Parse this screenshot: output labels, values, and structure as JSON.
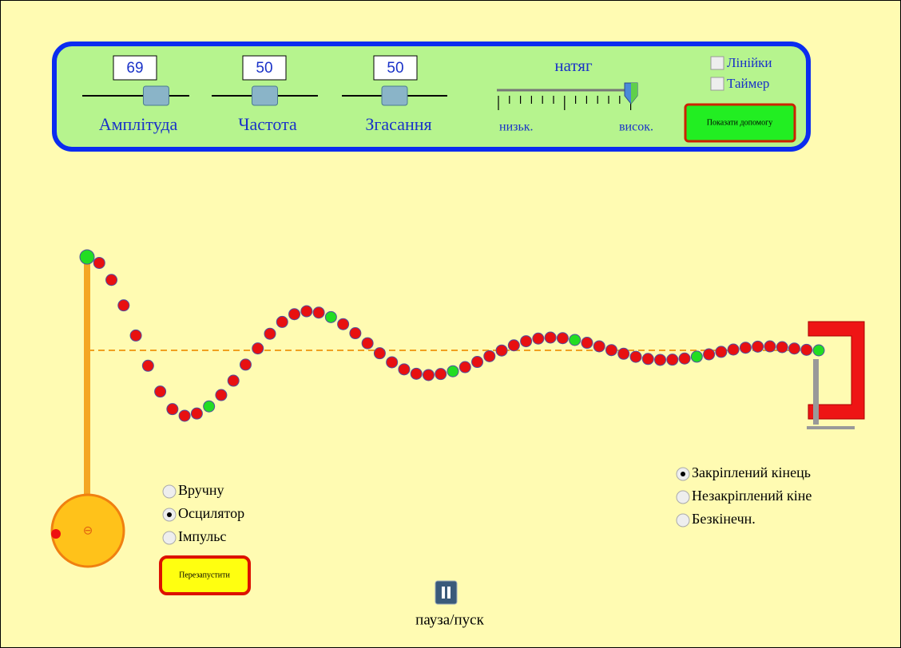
{
  "controls": [
    {
      "value": 69,
      "label": "Амплітуда"
    },
    {
      "value": 50,
      "label": "Частота"
    },
    {
      "value": 50,
      "label": "Згасання"
    }
  ],
  "tension": {
    "label": "натяг",
    "low": "низьк.",
    "high": "висок."
  },
  "checkboxes": [
    "Лінійки",
    "Таймер"
  ],
  "help_button": "Показати допомогу",
  "source_modes": [
    "Вручну",
    "Осцилятор",
    "Імпульс"
  ],
  "restart_button": "Перезапустити",
  "end_modes": [
    "Закріплений кінець",
    "Незакріплений кіне",
    "Безкінечн."
  ],
  "pause_label": "пауза/пуск"
}
